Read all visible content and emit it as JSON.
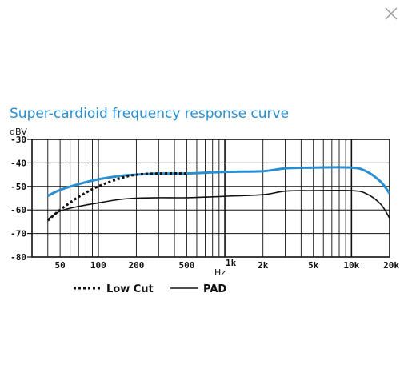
{
  "ui": {
    "close_icon": "close-icon"
  },
  "chart_data": {
    "type": "line",
    "title": "Super-cardioid frequency response curve",
    "ylabel": "dBV",
    "xlabel": "Hz",
    "x_scale": "log",
    "xlim": [
      30,
      20000
    ],
    "ylim": [
      -80,
      -30
    ],
    "grid": true,
    "y_ticks": [
      {
        "value": -30,
        "label": "-30"
      },
      {
        "value": -40,
        "label": "-40"
      },
      {
        "value": -50,
        "label": "-50"
      },
      {
        "value": -60,
        "label": "-60"
      },
      {
        "value": -70,
        "label": "-70"
      },
      {
        "value": -80,
        "label": "-80"
      }
    ],
    "x_ticks": [
      {
        "value": 50,
        "label": "50"
      },
      {
        "value": 100,
        "label": "100"
      },
      {
        "value": 200,
        "label": "200"
      },
      {
        "value": 500,
        "label": "500"
      },
      {
        "value": 1000,
        "label": "1k"
      },
      {
        "value": 2000,
        "label": "2k"
      },
      {
        "value": 5000,
        "label": "5k"
      },
      {
        "value": 10000,
        "label": "10k"
      },
      {
        "value": 20000,
        "label": "20k"
      }
    ],
    "series": [
      {
        "color": "#2a8fd0",
        "style": "solid",
        "x": [
          40,
          50,
          70,
          100,
          150,
          200,
          300,
          500,
          1000,
          2000,
          3000,
          5000,
          10000,
          13000,
          17000,
          20000
        ],
        "y": [
          -54,
          -51.5,
          -49,
          -47,
          -45.5,
          -45,
          -44.5,
          -44.5,
          -43.8,
          -43.5,
          -42.3,
          -42,
          -42,
          -43.5,
          -48,
          -53
        ]
      },
      {
        "name": "Low Cut",
        "color": "#111111",
        "style": "dotted",
        "x": [
          40,
          50,
          70,
          100,
          150,
          200,
          300,
          500
        ],
        "y": [
          -64.5,
          -60,
          -54.5,
          -50,
          -46.5,
          -45,
          -44.5,
          -44.5
        ]
      },
      {
        "name": "PAD",
        "color": "#111111",
        "style": "solid",
        "x": [
          40,
          50,
          70,
          100,
          150,
          200,
          300,
          500,
          1000,
          2000,
          3000,
          5000,
          10000,
          13000,
          17000,
          20000
        ],
        "y": [
          -64,
          -60.5,
          -58.5,
          -57,
          -55.5,
          -55,
          -54.8,
          -54.8,
          -54.2,
          -53.5,
          -52,
          -51.8,
          -51.8,
          -53,
          -57.5,
          -63.5
        ]
      }
    ],
    "legend": {
      "placement": "bottom-left",
      "entries": [
        {
          "label": "Low Cut",
          "style": "dotted"
        },
        {
          "label": "PAD",
          "style": "solid"
        }
      ]
    }
  }
}
